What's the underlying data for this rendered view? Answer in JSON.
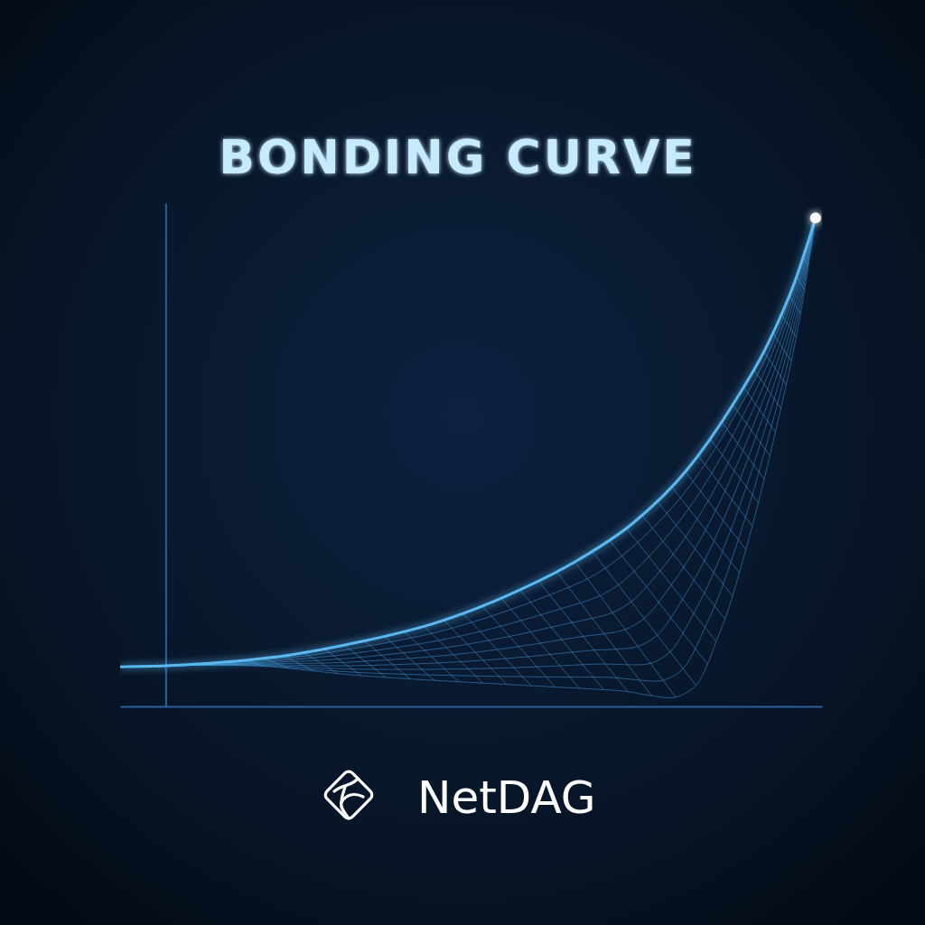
{
  "chart_data": {
    "type": "line",
    "title": "BONDING CURVE",
    "x": [
      -7,
      0,
      9.3,
      19.0,
      30.2,
      41.3,
      52.4,
      63.5,
      71.8,
      80.2,
      87.1,
      92.7,
      96.9,
      100
    ],
    "values": [
      8.1,
      8.3,
      9.1,
      10.5,
      13.3,
      17.0,
      22.6,
      30.0,
      37.4,
      48.4,
      61.4,
      74.3,
      87.3,
      100
    ],
    "xlim": [
      -7,
      101
    ],
    "ylim": [
      0,
      103
    ],
    "xticks": [],
    "yticks": [],
    "tick_labels": false,
    "color": "#5ab8f0"
  },
  "logo": {
    "text": "NetDAG"
  }
}
